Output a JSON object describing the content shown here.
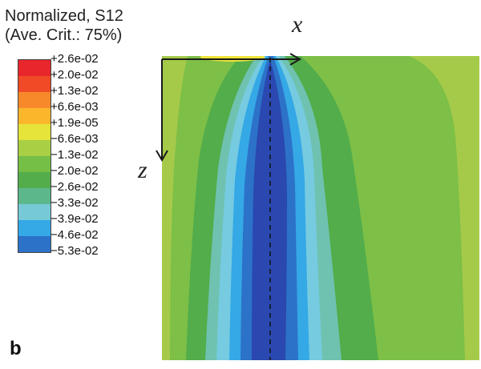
{
  "legend": {
    "title_line1": "Normalized, S12",
    "title_line2": "(Ave. Crit.: 75%)",
    "levels": [
      {
        "label": "+2.6e-02",
        "color": "#e8262b"
      },
      {
        "label": "+2.0e-02",
        "color": "#f04a26"
      },
      {
        "label": "+1.3e-02",
        "color": "#f7892a"
      },
      {
        "label": "+6.6e-03",
        "color": "#fbb62c"
      },
      {
        "label": "+1.9e-05",
        "color": "#e6e33a"
      },
      {
        "label": "−6.6e-03",
        "color": "#a9cf45"
      },
      {
        "label": "−1.3e-02",
        "color": "#76bf47"
      },
      {
        "label": "−2.0e-02",
        "color": "#52ad4a"
      },
      {
        "label": "−2.6e-02",
        "color": "#5cb88b"
      },
      {
        "label": "−3.3e-02",
        "color": "#76c9d6"
      },
      {
        "label": "−3.9e-02",
        "color": "#35a8e6"
      },
      {
        "label": "−4.6e-02",
        "color": "#2c72c8"
      },
      {
        "label": "−5.3e-02",
        "color": "#2a48b0"
      }
    ]
  },
  "axes": {
    "x_label": "x",
    "z_label": "z"
  },
  "panel_label": "b",
  "colors": {
    "background_field": "#a5ca4a",
    "band_green": "#7dbf47",
    "band_dark_green": "#52ad4a",
    "band_teal": "#6fc2b0",
    "band_light_blue": "#76cbe0",
    "band_blue": "#35a8e6",
    "band_mid_blue": "#2c72c8",
    "core_blue": "#2a48b0",
    "top_highlight": "#f0e43a"
  }
}
